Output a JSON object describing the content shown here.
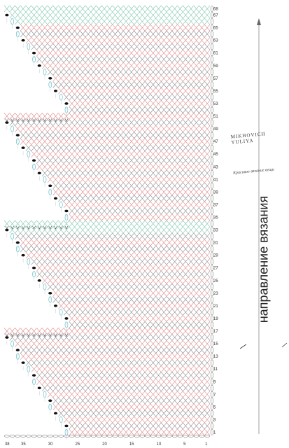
{
  "diagram": {
    "direction_label": "направление вязания",
    "author": "MIKHOVICH YULIYA",
    "author_subtitle": "Красивое вязание вещи",
    "row_labels": [
      "68",
      "67",
      "65",
      "63",
      "61",
      "59",
      "57",
      "55",
      "53",
      "51",
      "49",
      "47",
      "45",
      "43",
      "41",
      "39",
      "37",
      "35",
      "33",
      "31",
      "29",
      "27",
      "25",
      "23",
      "21",
      "19",
      "17",
      "15",
      "13",
      "11",
      "9",
      "7",
      "5",
      "3",
      "1"
    ],
    "column_labels": [
      "38",
      "35",
      "30",
      "25",
      "20",
      "15",
      "10",
      "5",
      "1"
    ],
    "colors": {
      "grid_red": "#e0898b",
      "grid_grey": "#8c8c8c",
      "grid_green": "#7fc6b0",
      "yarn_over": "#6ac1cc",
      "bobble": "#111111",
      "arrow": "#888888"
    }
  }
}
